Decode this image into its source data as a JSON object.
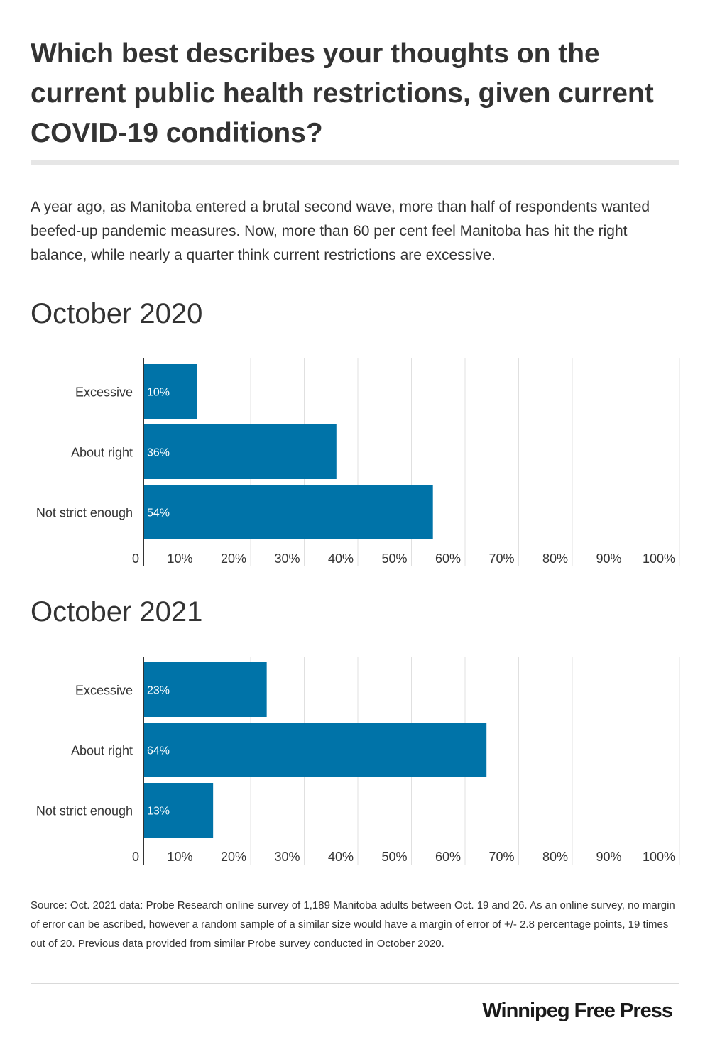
{
  "title": "Which best describes your thoughts on the current public health restrictions, given current COVID-19 conditions?",
  "intro": "A year ago, as Manitoba entered a brutal second wave, more than half of respondents wanted beefed-up pandemic measures.  Now, more than 60 per cent feel Manitoba has hit the right balance, while nearly a quarter think current restrictions are excessive.",
  "colors": {
    "bar": "#0073A8",
    "grid": "#e0e0e0",
    "axis": "#333333"
  },
  "chart_data": [
    {
      "type": "bar",
      "orientation": "horizontal",
      "title": "October 2020",
      "categories": [
        "Excessive",
        "About right",
        "Not strict enough"
      ],
      "values": [
        10,
        36,
        54
      ],
      "value_labels": [
        "10%",
        "36%",
        "54%"
      ],
      "xlim": [
        0,
        100
      ],
      "x_ticks": [
        "0",
        "10%",
        "20%",
        "30%",
        "40%",
        "50%",
        "60%",
        "70%",
        "80%",
        "90%",
        "100%"
      ],
      "grid": true
    },
    {
      "type": "bar",
      "orientation": "horizontal",
      "title": "October 2021",
      "categories": [
        "Excessive",
        "About right",
        "Not strict enough"
      ],
      "values": [
        23,
        64,
        13
      ],
      "value_labels": [
        "23%",
        "64%",
        "13%"
      ],
      "xlim": [
        0,
        100
      ],
      "x_ticks": [
        "0",
        "10%",
        "20%",
        "30%",
        "40%",
        "50%",
        "60%",
        "70%",
        "80%",
        "90%",
        "100%"
      ],
      "grid": true
    }
  ],
  "source": "Source: Oct. 2021 data: Probe Research online survey of 1,189 Manitoba adults between Oct. 19 and 26. As an online survey, no margin of error can be ascribed, however a random sample of a similar size would have a margin of error of +/- 2.8 percentage points, 19 times out of 20. Previous data provided from similar Probe survey conducted in October 2020.",
  "brand": "Winnipeg Free Press"
}
